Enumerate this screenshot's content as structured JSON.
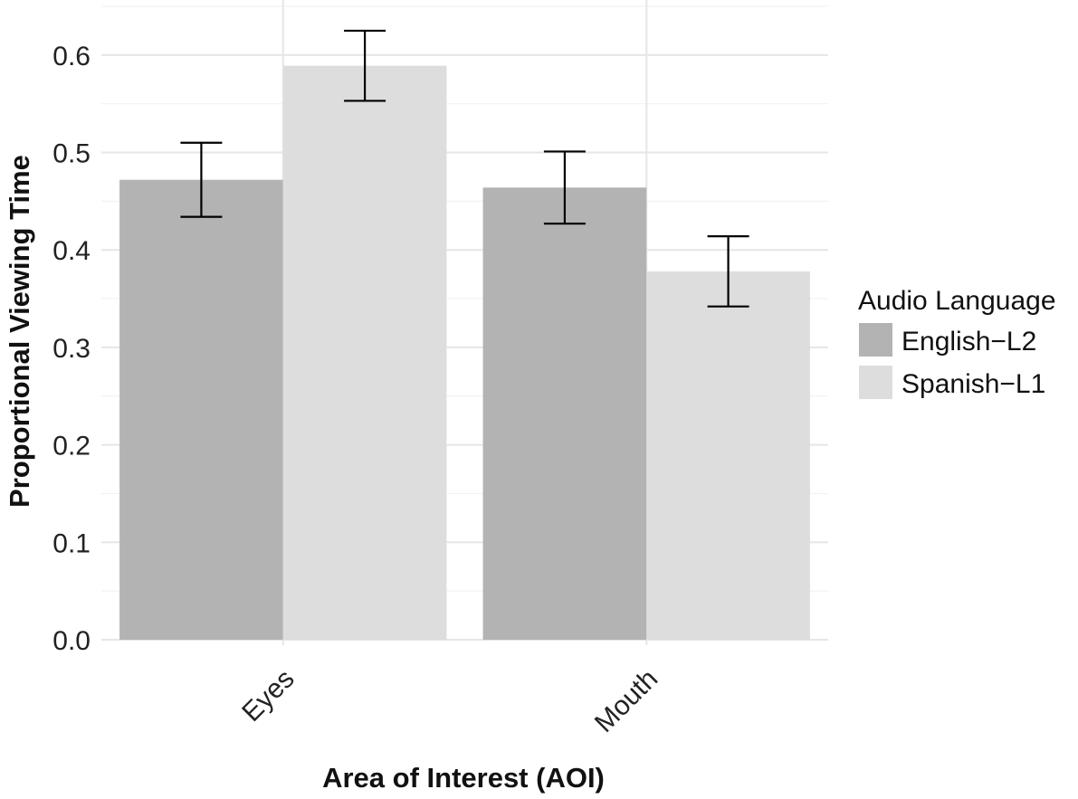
{
  "chart_data": {
    "type": "bar",
    "categories": [
      "Eyes",
      "Mouth"
    ],
    "series": [
      {
        "name": "English−L2",
        "color": "#b3b3b3",
        "values": [
          0.472,
          0.464
        ],
        "error_low": [
          0.434,
          0.427
        ],
        "error_high": [
          0.51,
          0.501
        ]
      },
      {
        "name": "Spanish−L1",
        "color": "#dddddd",
        "values": [
          0.589,
          0.378
        ],
        "error_low": [
          0.553,
          0.342
        ],
        "error_high": [
          0.625,
          0.414
        ]
      }
    ],
    "xlabel": "Area of Interest (AOI)",
    "ylabel": "Proportional Viewing Time",
    "ylim": [
      0,
      0.65
    ],
    "yticks": [
      "0.0",
      "0.1",
      "0.2",
      "0.3",
      "0.4",
      "0.5",
      "0.6"
    ],
    "grid": true,
    "legend": {
      "title": "Audio Language",
      "position": "right"
    }
  }
}
